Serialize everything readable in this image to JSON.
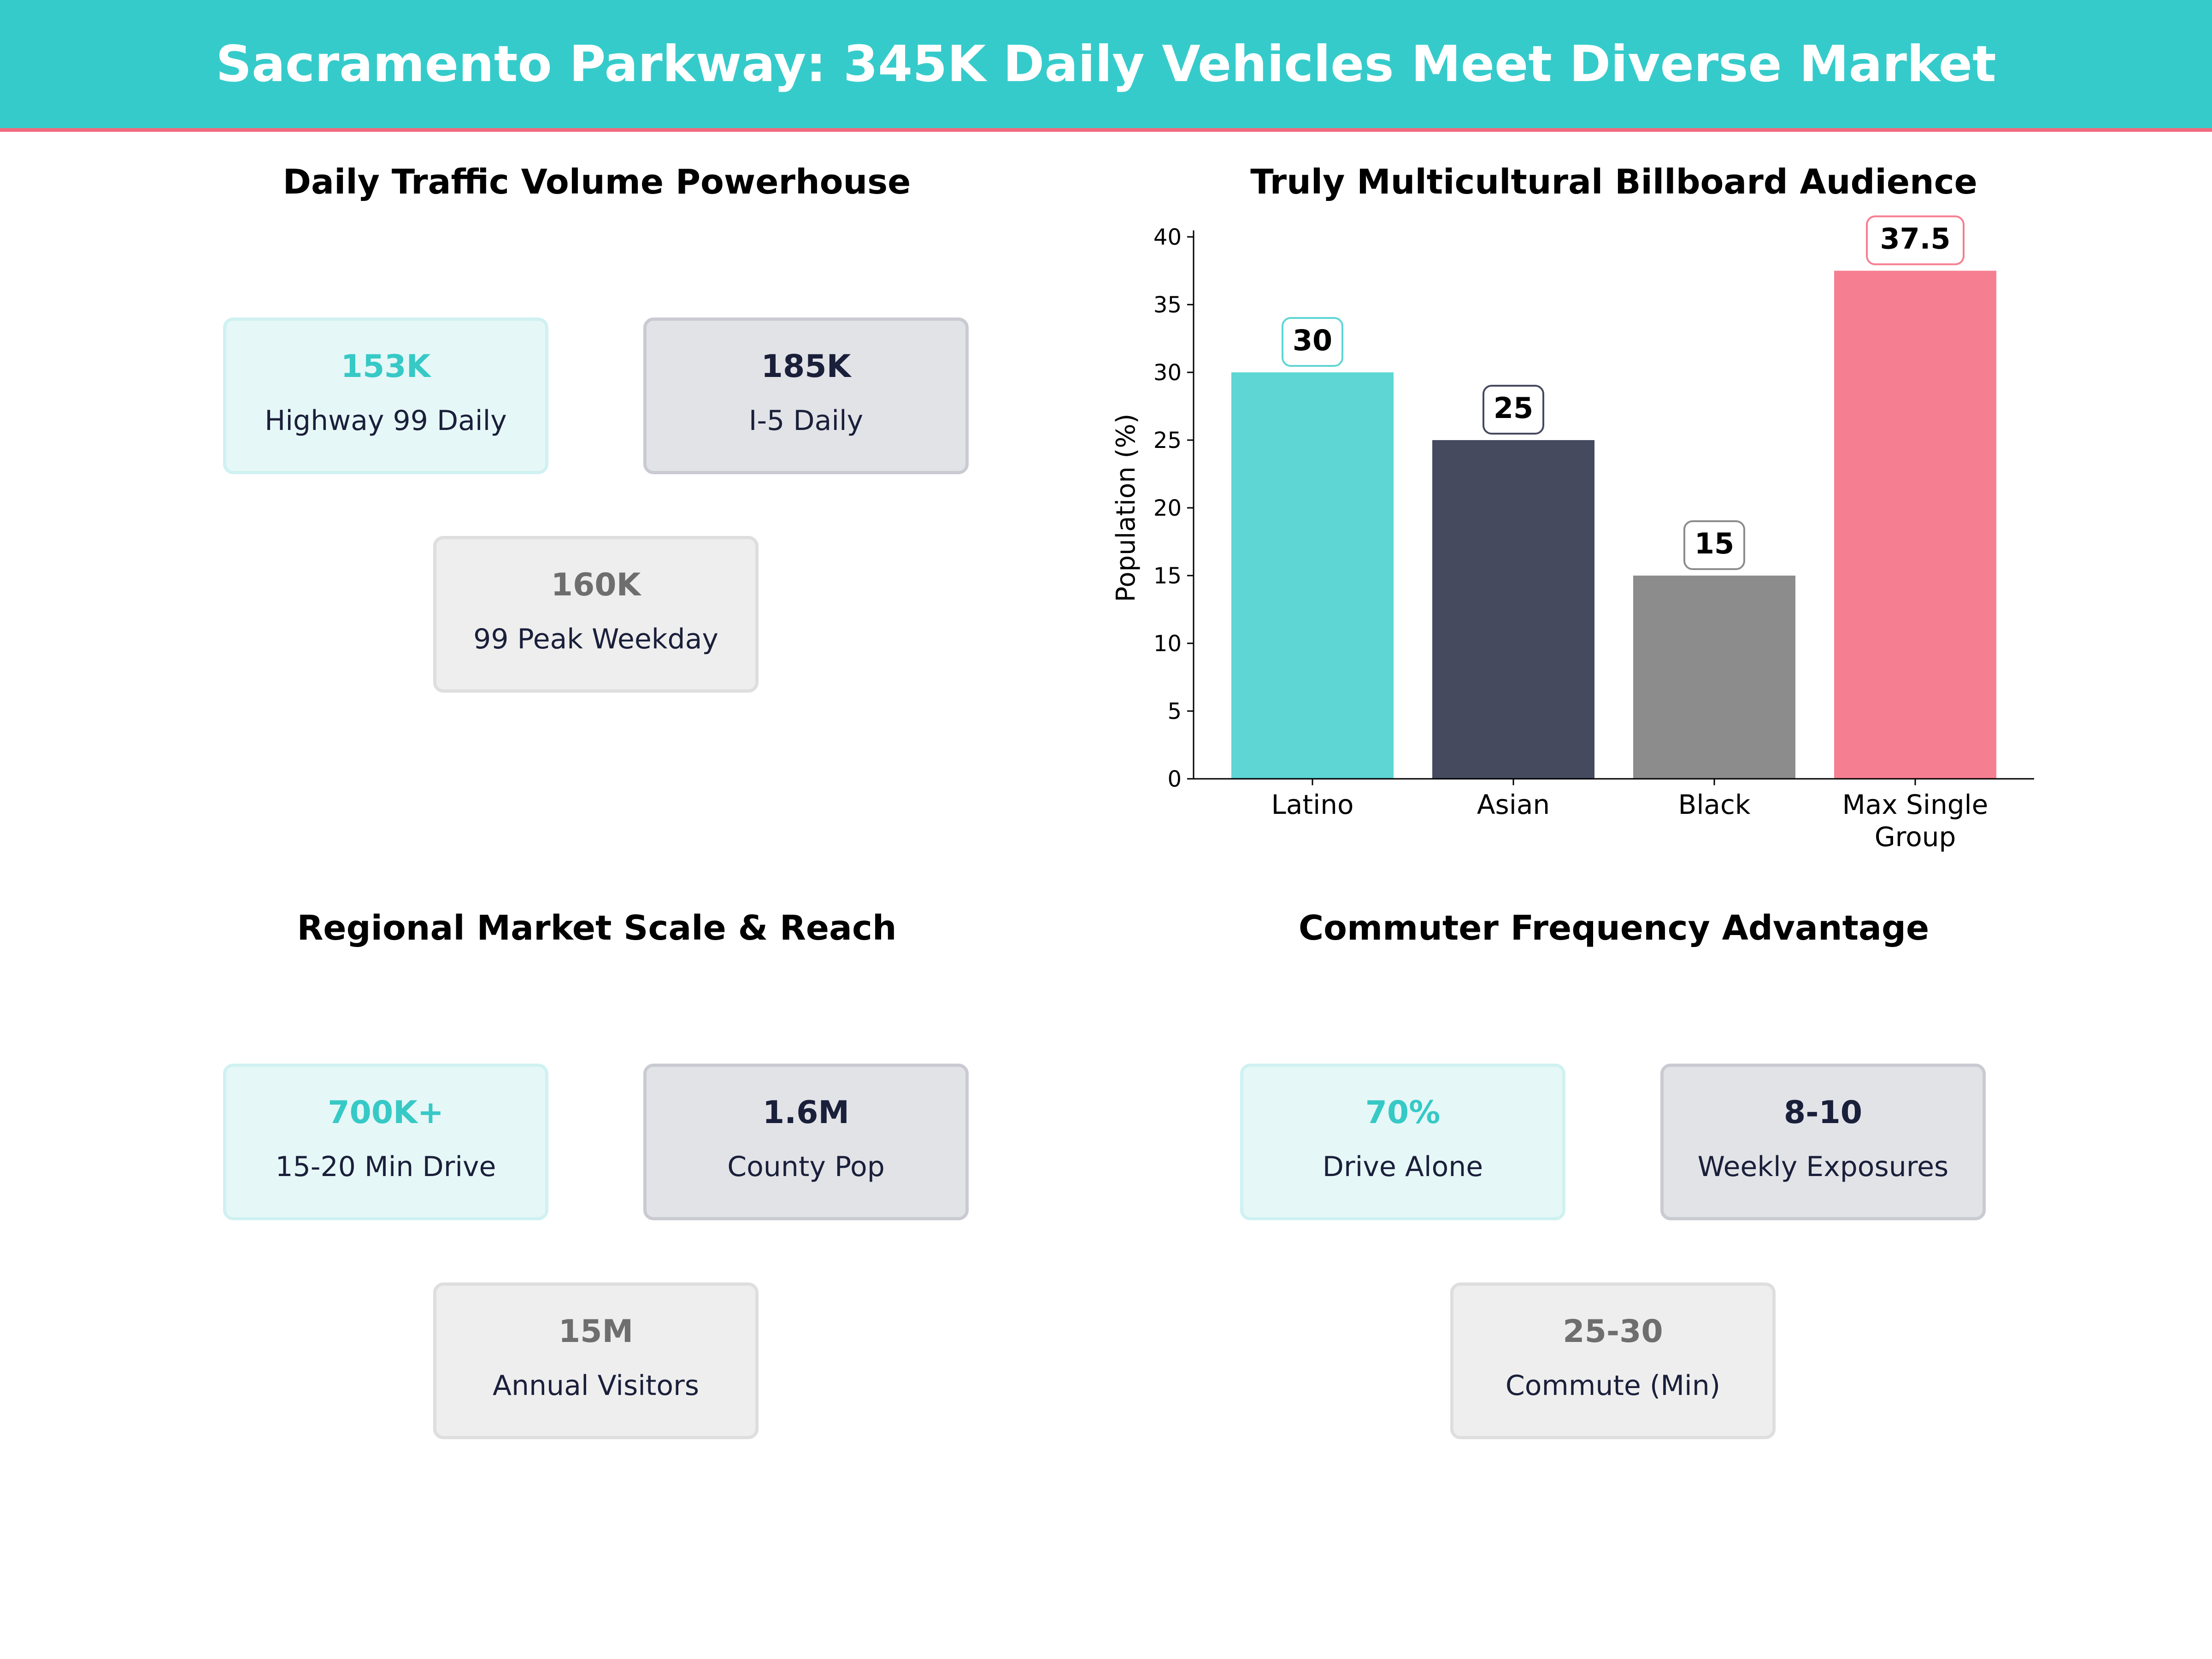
{
  "header": {
    "title": "Sacramento Parkway: 345K Daily Vehicles Meet Diverse Market"
  },
  "panels": {
    "traffic": {
      "title": "Daily Traffic Volume Powerhouse",
      "cards": [
        {
          "value": "153K",
          "label": "Highway 99 Daily"
        },
        {
          "value": "185K",
          "label": "I-5 Daily"
        },
        {
          "value": "160K",
          "label": "99 Peak Weekday"
        }
      ]
    },
    "market": {
      "title": "Regional Market Scale & Reach",
      "cards": [
        {
          "value": "700K+",
          "label": "15-20 Min Drive"
        },
        {
          "value": "1.6M",
          "label": "County Pop"
        },
        {
          "value": "15M",
          "label": "Annual Visitors"
        }
      ]
    },
    "commuter": {
      "title": "Commuter Frequency Advantage",
      "cards": [
        {
          "value": "70%",
          "label": "Drive Alone"
        },
        {
          "value": "8-10",
          "label": "Weekly Exposures"
        },
        {
          "value": "25-30",
          "label": "Commute (Min)"
        }
      ]
    }
  },
  "chart_data": {
    "type": "bar",
    "title": "Truly Multicultural Billboard Audience",
    "categories": [
      "Latino",
      "Asian",
      "Black",
      "Max Single Group"
    ],
    "values": [
      30,
      25,
      15,
      37.5
    ],
    "value_labels": [
      "30",
      "25",
      "15",
      "37.5"
    ],
    "colors": [
      "#5DD6D4",
      "#464A5F",
      "#8C8C8C",
      "#F67E91"
    ],
    "label_border_colors": [
      "#5DD6D4",
      "#464A5F",
      "#8C8C8C",
      "#F67E91"
    ],
    "xlabel": "",
    "ylabel": "Population (%)",
    "ylim": [
      0,
      40
    ],
    "yticks": [
      0,
      5,
      10,
      15,
      20,
      25,
      30,
      35,
      40
    ],
    "grid": false
  },
  "colors": {
    "header": "#36CBCB",
    "accent": "#F06A7E"
  }
}
